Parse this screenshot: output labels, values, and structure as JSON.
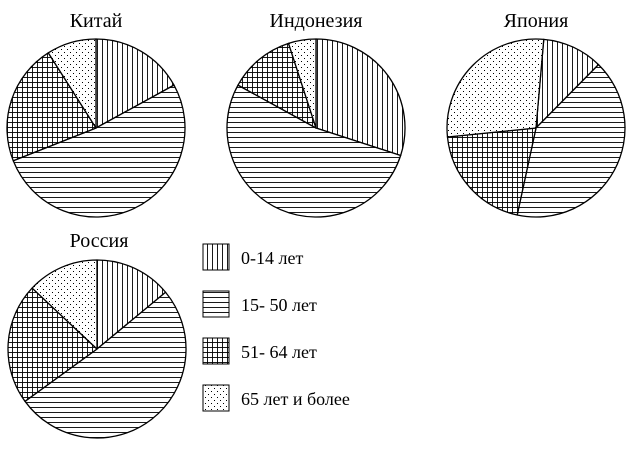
{
  "chart_data": [
    {
      "type": "pie",
      "title": "Китай",
      "slices": [
        {
          "label": "0-14 лет",
          "value": 17
        },
        {
          "label": "15- 50 лет",
          "value": 52
        },
        {
          "label": "51- 64 лет",
          "value": 22
        },
        {
          "label": "65 лет и более",
          "value": 9
        }
      ]
    },
    {
      "type": "pie",
      "title": "Индонезия",
      "slices": [
        {
          "label": "0-14 лет",
          "value": 30
        },
        {
          "label": "15- 50 лет",
          "value": 53
        },
        {
          "label": "51- 64 лет",
          "value": 12
        },
        {
          "label": "65 лет и более",
          "value": 5
        }
      ]
    },
    {
      "type": "pie",
      "title": "Япония",
      "slices": [
        {
          "label": "0-14 лет",
          "value": 11
        },
        {
          "label": "15- 50 лет",
          "value": 41
        },
        {
          "label": "51- 64 лет",
          "value": 20
        },
        {
          "label": "65 лет и более",
          "value": 28
        }
      ]
    },
    {
      "type": "pie",
      "title": "Россия",
      "slices": [
        {
          "label": "0-14 лет",
          "value": 14
        },
        {
          "label": "15- 50 лет",
          "value": 51
        },
        {
          "label": "51- 64 лет",
          "value": 22
        },
        {
          "label": "65 лет и более",
          "value": 13
        }
      ]
    }
  ],
  "legend": [
    {
      "label": "0-14 лет",
      "pattern": "vertical-lines"
    },
    {
      "label": "15- 50 лет",
      "pattern": "horizontal-lines"
    },
    {
      "label": "51- 64 лет",
      "pattern": "grid"
    },
    {
      "label": "65 лет и более",
      "pattern": "dots"
    }
  ],
  "colors": {
    "ink": "#000000",
    "background": "#ffffff"
  }
}
